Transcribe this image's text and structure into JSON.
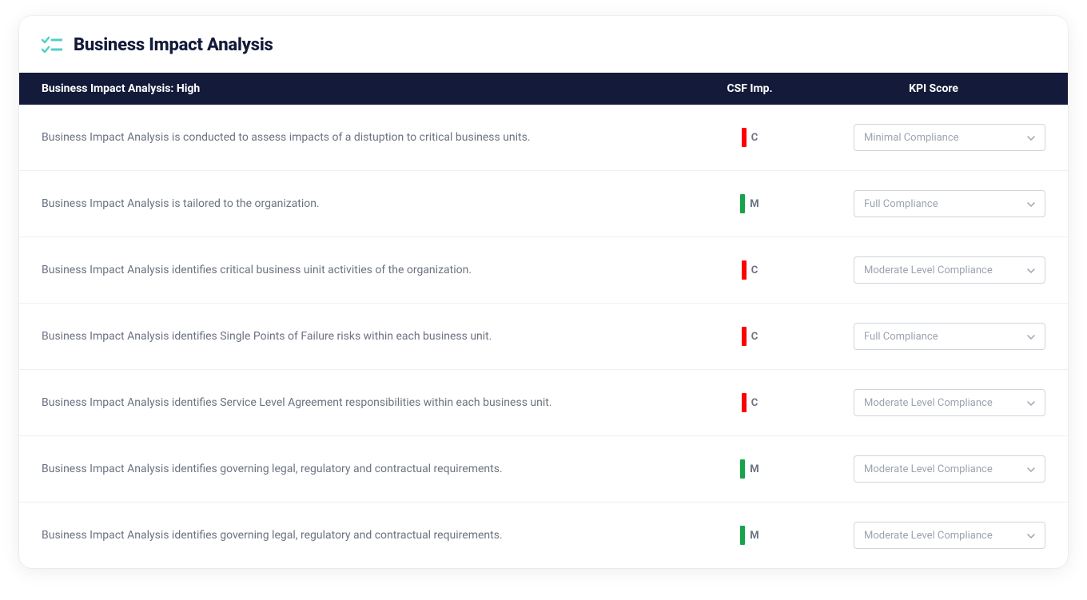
{
  "colors": {
    "header_bg": "#131a3a",
    "header_text": "#ffffff",
    "card_bg": "#ffffff",
    "row_border": "#eef0f4",
    "desc_text": "#6b7280",
    "csf_label_text": "#6b7280",
    "select_border": "#d1d5db",
    "select_text": "#9ca3af",
    "icon_teal": "#4fd1c5",
    "csf_red": "#ff0000",
    "csf_green": "#16a34a"
  },
  "header": {
    "title": "Business Impact Analysis"
  },
  "table": {
    "columns": {
      "desc": "Business Impact Analysis: High",
      "csf": "CSF Imp.",
      "kpi": "KPI Score"
    },
    "rows": [
      {
        "desc": "Business Impact Analysis is conducted to assess impacts of a distuption to critical business units.",
        "csf_label": "C",
        "csf_color": "#ff0000",
        "kpi_value": "Minimal Compliance"
      },
      {
        "desc": "Business Impact Analysis is tailored to the organization.",
        "csf_label": "M",
        "csf_color": "#16a34a",
        "kpi_value": "Full Compliance"
      },
      {
        "desc": "Business Impact Analysis identifies critical business uinit activities of the organization.",
        "csf_label": "C",
        "csf_color": "#ff0000",
        "kpi_value": "Moderate Level Compliance"
      },
      {
        "desc": "Business Impact Analysis identifies Single Points of Failure risks within each business unit.",
        "csf_label": "C",
        "csf_color": "#ff0000",
        "kpi_value": "Full Compliance"
      },
      {
        "desc": "Business Impact Analysis identifies Service Level Agreement responsibilities within each business unit.",
        "csf_label": "C",
        "csf_color": "#ff0000",
        "kpi_value": "Moderate Level Compliance"
      },
      {
        "desc": "Business Impact Analysis identifies governing legal, regulatory and contractual requirements.",
        "csf_label": "M",
        "csf_color": "#16a34a",
        "kpi_value": "Moderate Level Compliance"
      },
      {
        "desc": "Business Impact Analysis identifies governing legal, regulatory and contractual requirements.",
        "csf_label": "M",
        "csf_color": "#16a34a",
        "kpi_value": "Moderate Level Compliance"
      }
    ]
  }
}
